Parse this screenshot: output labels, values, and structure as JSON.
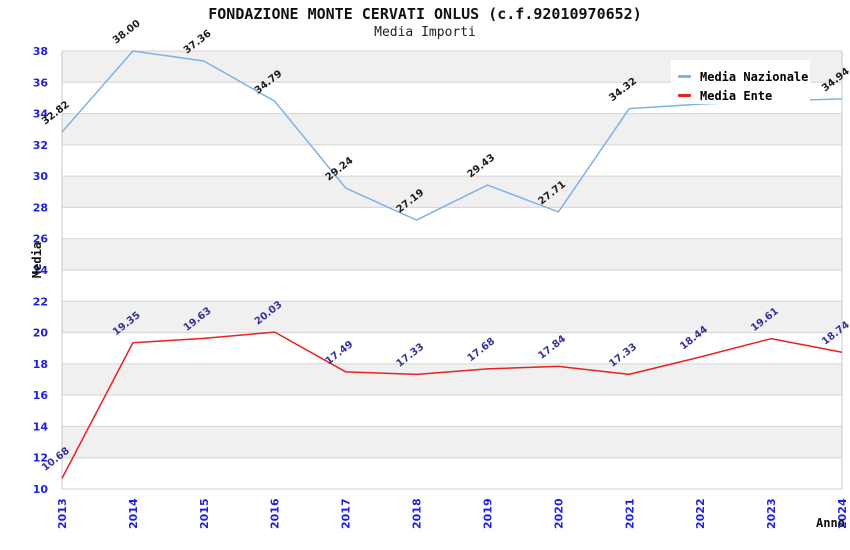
{
  "header": {
    "title": "FONDAZIONE MONTE CERVATI ONLUS (c.f.92010970652)",
    "subtitle": "Media Importi"
  },
  "chart_data": {
    "type": "line",
    "title": "FONDAZIONE MONTE CERVATI ONLUS (c.f.92010970652)",
    "subtitle": "Media Importi",
    "xlabel": "Anno",
    "ylabel": "Media",
    "categories": [
      "2013",
      "2014",
      "2015",
      "2016",
      "2017",
      "2018",
      "2019",
      "2020",
      "2021",
      "2022",
      "2023",
      "2024"
    ],
    "ylim": [
      10,
      38
    ],
    "ytick_step": 2,
    "ytick_labels": [
      "10",
      "12",
      "14",
      "16",
      "18",
      "20",
      "22",
      "24",
      "26",
      "28",
      "30",
      "32",
      "34",
      "36",
      "38"
    ],
    "grid": true,
    "band_shading": "alternating 2-unit horizontal bands, gray band at 36-38",
    "legend_position": "top-right",
    "series": [
      {
        "name": "Media Nazionale",
        "color": "#7fb2e5",
        "label_color": "#1c1c1c",
        "values": [
          32.82,
          38.0,
          37.36,
          34.79,
          29.24,
          27.19,
          29.43,
          27.71,
          34.32,
          34.6,
          34.8,
          34.94
        ],
        "point_labels": [
          "32.82",
          "38.00",
          "37.36",
          "34.79",
          "29.24",
          "27.19",
          "29.43",
          "27.71",
          "34.32",
          "",
          "",
          "34.94"
        ]
      },
      {
        "name": "Media Ente",
        "color": "#e62222",
        "label_color": "#333399",
        "values": [
          10.68,
          19.35,
          19.63,
          20.03,
          17.49,
          17.33,
          17.68,
          17.84,
          17.33,
          18.44,
          19.61,
          18.74
        ],
        "point_labels": [
          "10.68",
          "19.35",
          "19.63",
          "20.03",
          "17.49",
          "17.33",
          "17.68",
          "17.84",
          "17.33",
          "18.44",
          "19.61",
          "18.74"
        ]
      }
    ]
  },
  "styles": {
    "tick_color": "#1f1fe0",
    "grid_color": "#d4d4d4",
    "band_color": "#f0f0f0",
    "axis_border_color": "#c9c9c9",
    "legend_bg": "#ffffff"
  }
}
